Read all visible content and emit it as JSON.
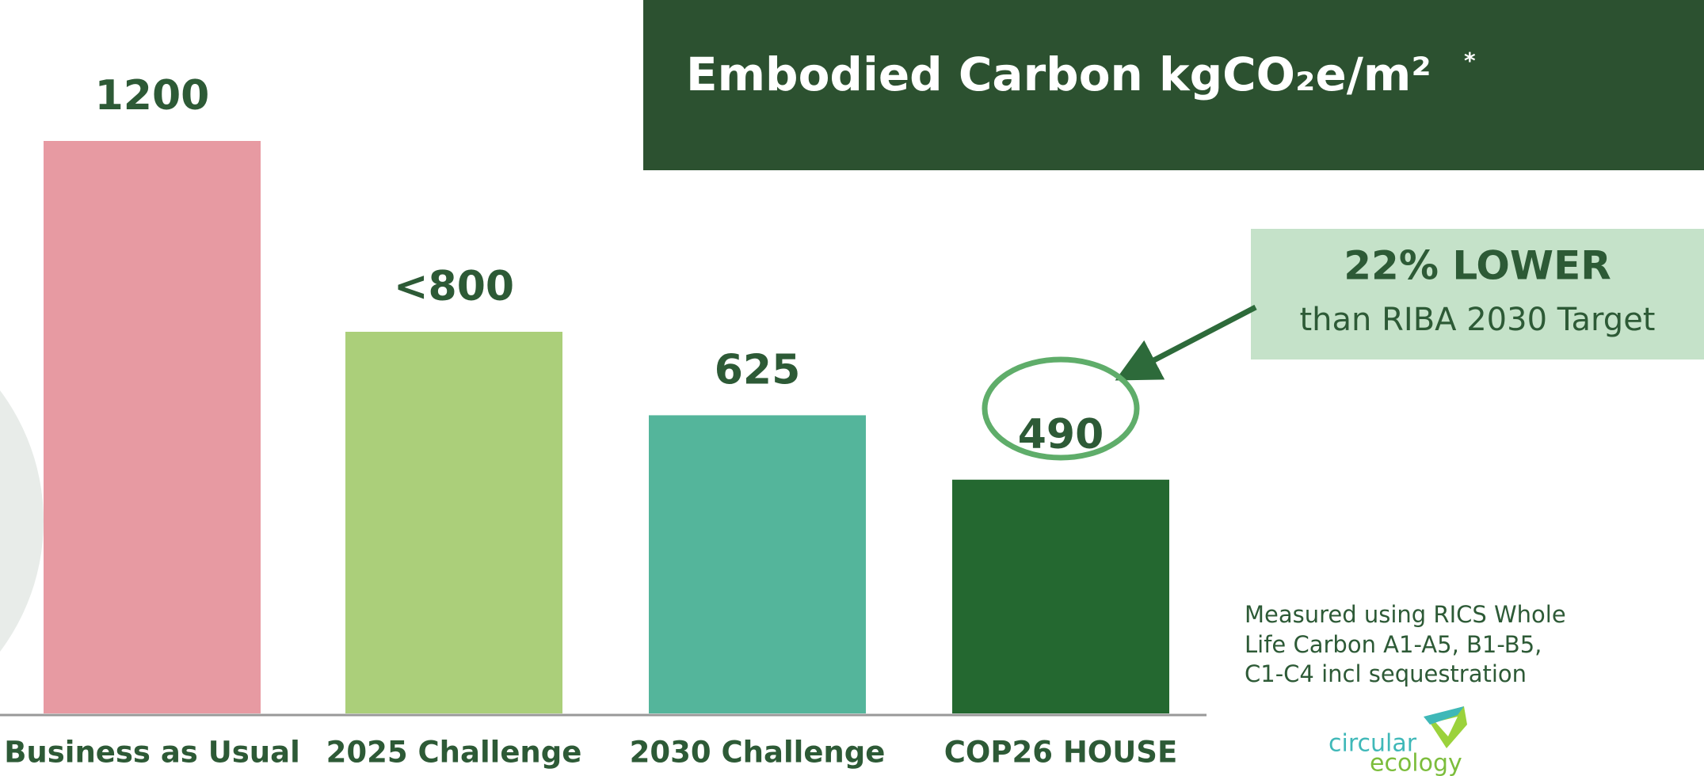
{
  "chart_data": {
    "type": "bar",
    "title": "Embodied Carbon kgCO₂e/m²",
    "title_note": "*",
    "categories": [
      "Business as Usual",
      "2025 Challenge",
      "2030 Challenge",
      "COP26 HOUSE"
    ],
    "values": [
      1200,
      800,
      625,
      490
    ],
    "value_labels": [
      "1200",
      "<800",
      "625",
      "490"
    ],
    "colors": [
      "#e79aa2",
      "#abcf7a",
      "#54b59b",
      "#246830"
    ],
    "annotation": {
      "headline": "22% LOWER",
      "text": "than RIBA 2030 Target"
    },
    "note": [
      "Measured using RICS Whole",
      "Life Carbon A1-A5, B1-B5,",
      "C1-C4 incl sequestration"
    ],
    "logo": [
      "circular",
      "ecology"
    ]
  }
}
